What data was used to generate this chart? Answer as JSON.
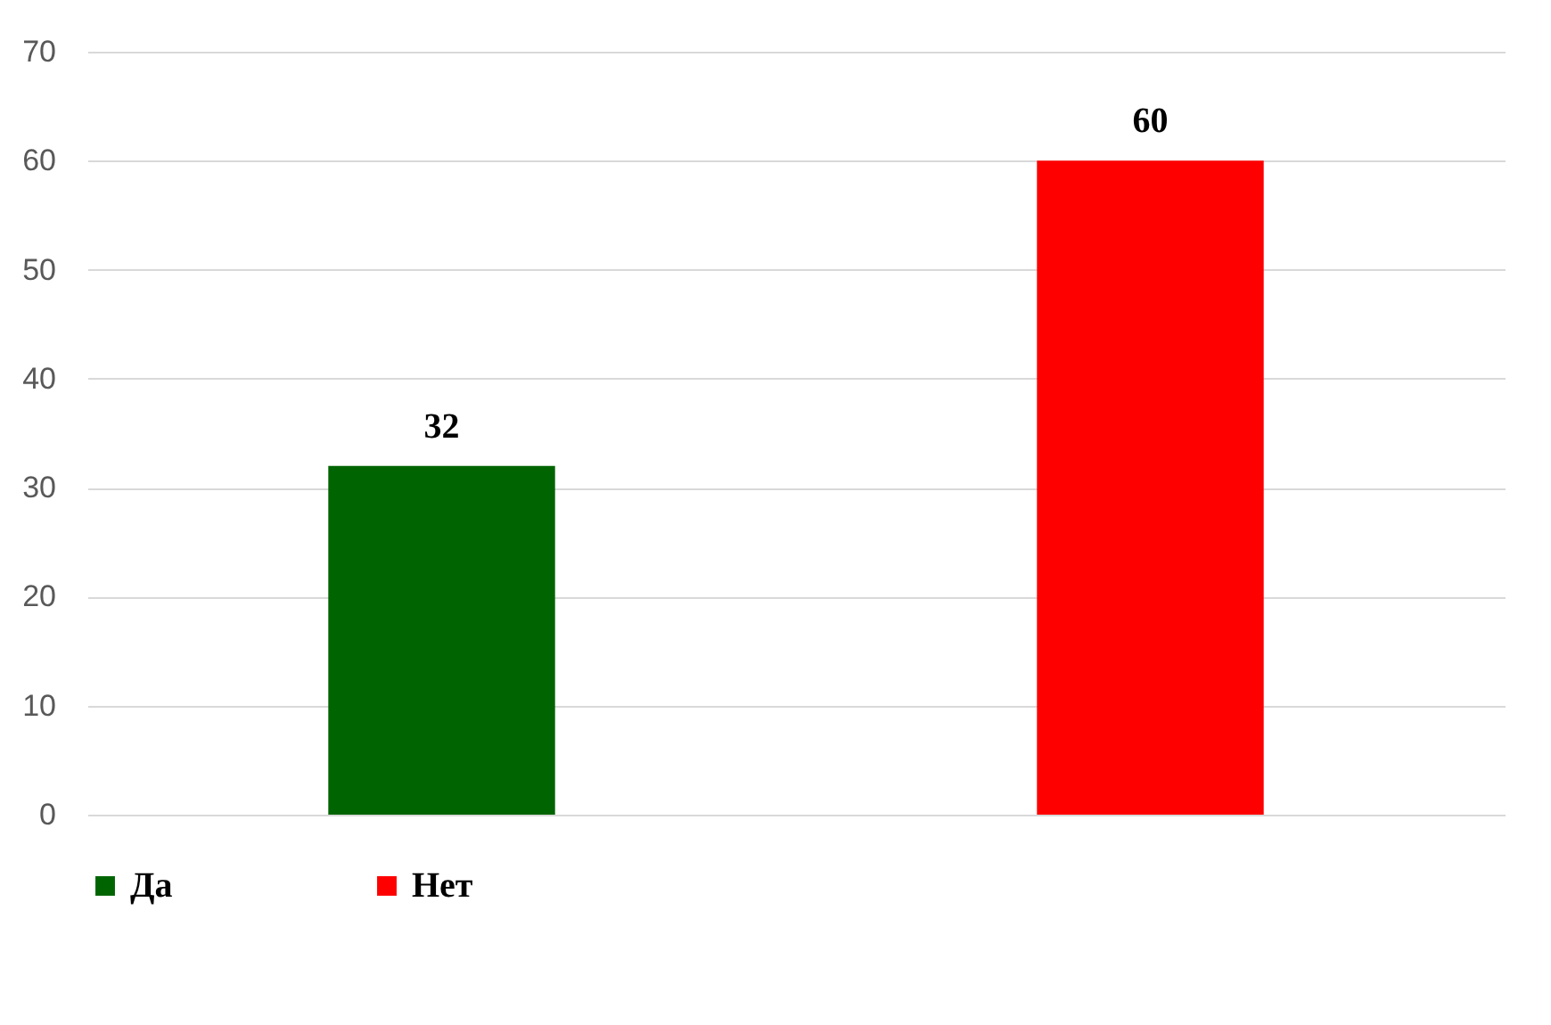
{
  "chart_data": {
    "type": "bar",
    "categories": [
      null,
      null
    ],
    "series": [
      {
        "name": "Да",
        "color": "#006400",
        "values": [
          32,
          null
        ]
      },
      {
        "name": "Нет",
        "color": "#ff0000",
        "values": [
          null,
          60
        ]
      }
    ],
    "ylim": [
      0,
      70
    ],
    "yticks": [
      0,
      10,
      20,
      30,
      40,
      50,
      60,
      70
    ],
    "grid": "y",
    "legend": "bottom",
    "data_labels": true,
    "tick_labels": "y"
  }
}
